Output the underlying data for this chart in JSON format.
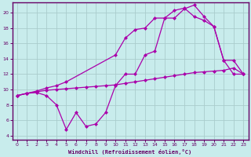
{
  "xlabel": "Windchill (Refroidissement éolien,°C)",
  "bg_color": "#c8ecec",
  "line_color": "#aa00aa",
  "grid_color": "#aacccc",
  "axis_color": "#660066",
  "line1_x": [
    0,
    1,
    2,
    3,
    4,
    5,
    6,
    7,
    8,
    9,
    10,
    11,
    12,
    13,
    14,
    15,
    16,
    17,
    18,
    19,
    20,
    21,
    22,
    23
  ],
  "line1_y": [
    9.2,
    9.5,
    9.6,
    9.2,
    8.0,
    4.8,
    7.0,
    5.2,
    5.5,
    7.0,
    10.5,
    12.0,
    12.0,
    14.5,
    15.0,
    19.3,
    19.3,
    20.5,
    21.0,
    19.5,
    18.2,
    13.8,
    13.8,
    12.0
  ],
  "line2_x": [
    0,
    1,
    2,
    3,
    4,
    5,
    6,
    7,
    8,
    9,
    10,
    11,
    12,
    13,
    14,
    15,
    16,
    17,
    18,
    19,
    20,
    21,
    22,
    23
  ],
  "line2_y": [
    9.2,
    9.5,
    9.7,
    9.9,
    10.0,
    10.1,
    10.2,
    10.3,
    10.4,
    10.5,
    10.6,
    10.8,
    11.0,
    11.2,
    11.4,
    11.6,
    11.8,
    12.0,
    12.2,
    12.3,
    12.4,
    12.5,
    12.8,
    12.0
  ],
  "line3_x": [
    0,
    1,
    2,
    3,
    4,
    5,
    10,
    11,
    12,
    13,
    14,
    15,
    16,
    17,
    18,
    19,
    20,
    21,
    22,
    23
  ],
  "line3_y": [
    9.2,
    9.5,
    9.8,
    10.2,
    10.5,
    11.0,
    14.5,
    16.7,
    17.8,
    18.0,
    19.3,
    19.3,
    20.3,
    20.6,
    19.5,
    19.0,
    18.2,
    13.8,
    12.0,
    12.0
  ],
  "ylim": [
    4,
    21
  ],
  "xlim": [
    -0.5,
    23.5
  ],
  "yticks": [
    4,
    6,
    8,
    10,
    12,
    14,
    16,
    18,
    20
  ],
  "xticks": [
    0,
    1,
    2,
    3,
    4,
    5,
    6,
    7,
    8,
    9,
    10,
    11,
    12,
    13,
    14,
    15,
    16,
    17,
    18,
    19,
    20,
    21,
    22,
    23
  ]
}
